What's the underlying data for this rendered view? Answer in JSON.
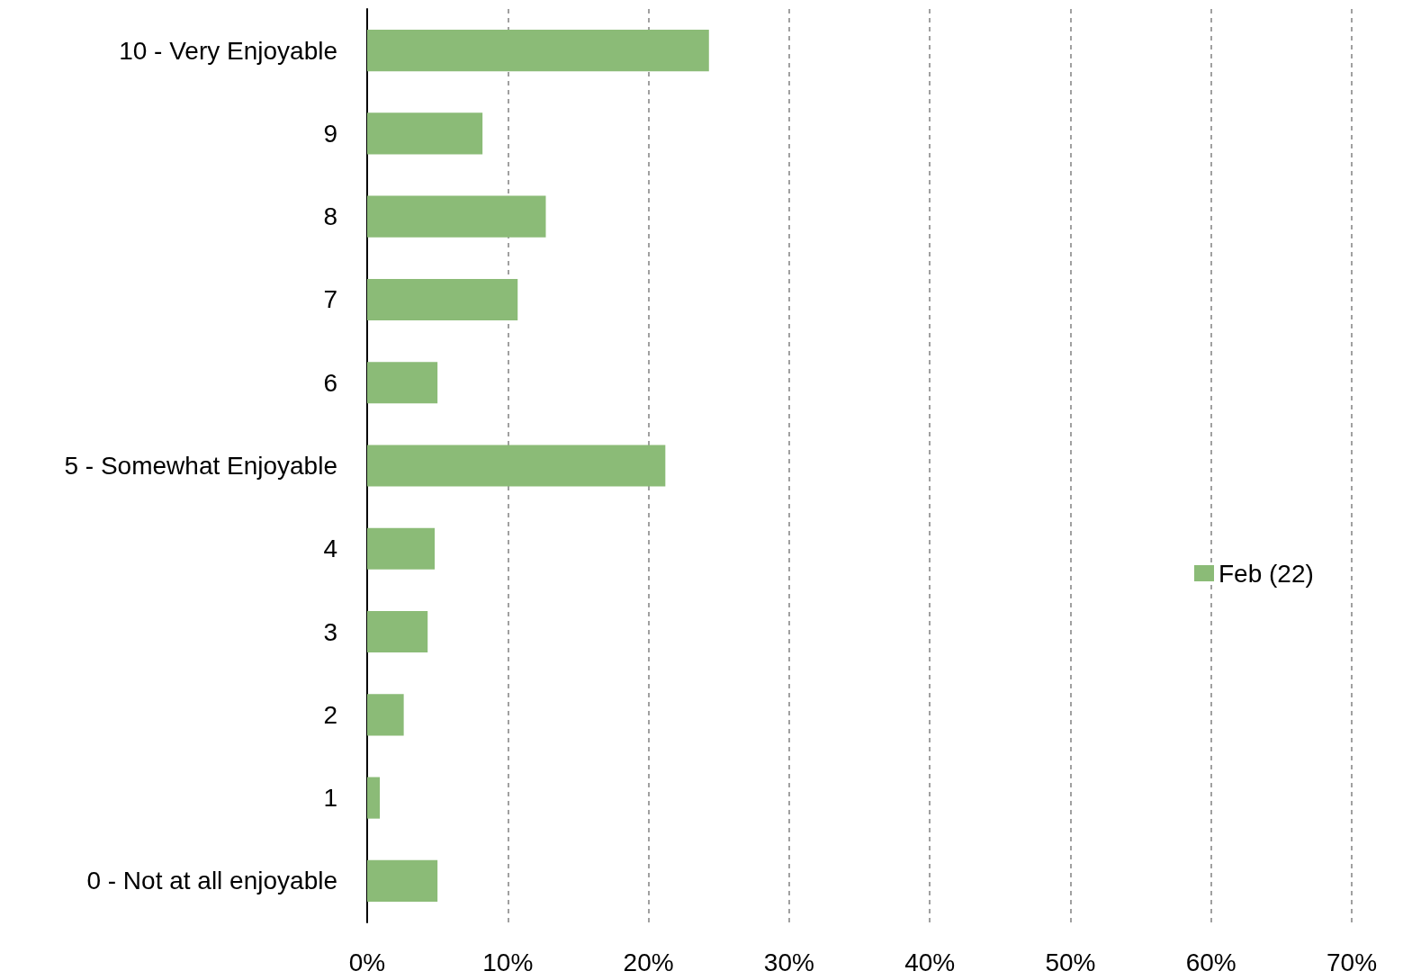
{
  "chart_data": {
    "type": "bar",
    "orientation": "horizontal",
    "categories": [
      "10 - Very Enjoyable",
      "9",
      "8",
      "7",
      "6",
      "5 - Somewhat Enjoyable",
      "4",
      "3",
      "2",
      "1",
      "0 - Not at all enjoyable"
    ],
    "series": [
      {
        "name": "Feb (22)",
        "color": "#8bbb77",
        "values": [
          24.3,
          8.2,
          12.7,
          10.7,
          5.0,
          21.2,
          4.8,
          4.3,
          2.6,
          0.9,
          5.0
        ]
      }
    ],
    "xlim": [
      0,
      70
    ],
    "xticks": [
      {
        "value": 0,
        "label": "0%"
      },
      {
        "value": 10,
        "label": "10%"
      },
      {
        "value": 20,
        "label": "20%"
      },
      {
        "value": 30,
        "label": "30%"
      },
      {
        "value": 40,
        "label": "40%"
      },
      {
        "value": 50,
        "label": "50%"
      },
      {
        "value": 60,
        "label": "60%"
      },
      {
        "value": 70,
        "label": "70%"
      }
    ],
    "grid": "x",
    "legend": "right"
  }
}
